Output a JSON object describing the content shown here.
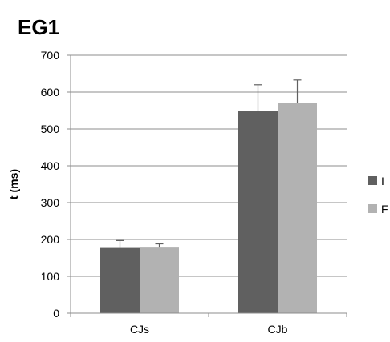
{
  "chart_data": {
    "type": "bar",
    "title": "EG1",
    "xlabel": "",
    "ylabel": "t (ms)",
    "ylim": [
      0,
      700
    ],
    "yticks": [
      0,
      100,
      200,
      300,
      400,
      500,
      600,
      700
    ],
    "categories": [
      "CJs",
      "CJb"
    ],
    "series": [
      {
        "name": "I",
        "color": "#606060",
        "values": [
          177,
          550
        ],
        "errors": [
          20,
          70
        ]
      },
      {
        "name": "F",
        "color": "#b2b2b2",
        "values": [
          178,
          570
        ],
        "errors": [
          10,
          63
        ]
      }
    ],
    "grid": true,
    "legend": "right"
  }
}
